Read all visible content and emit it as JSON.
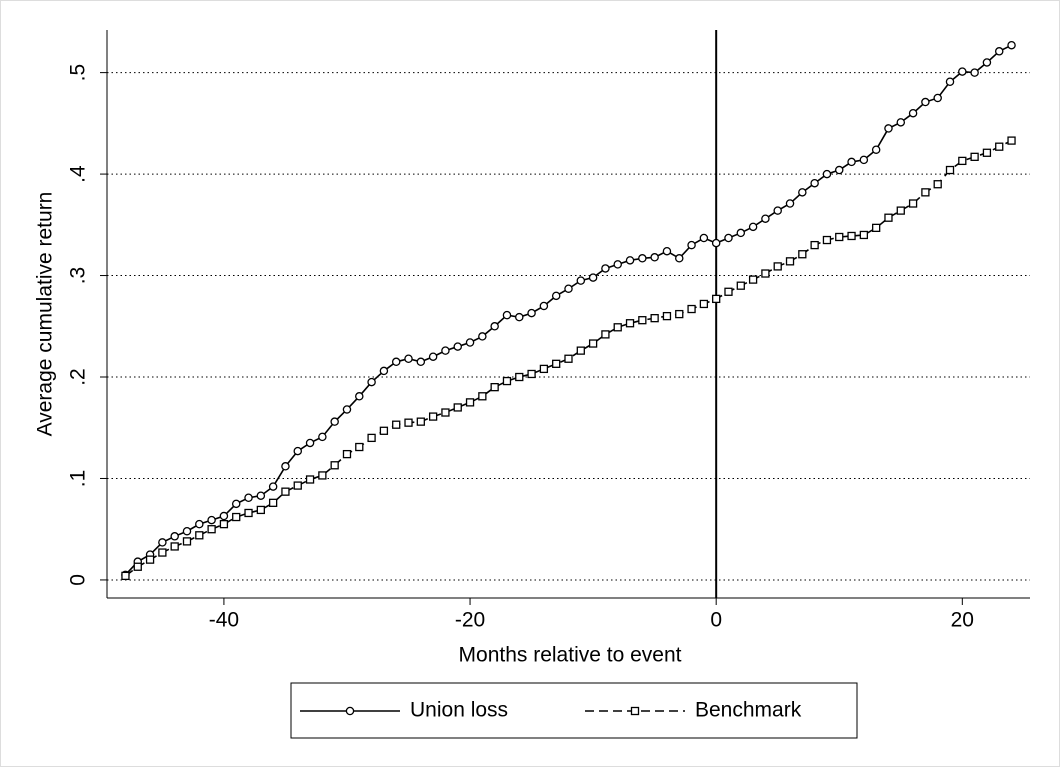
{
  "chart_data": {
    "type": "line",
    "xlabel": "Months relative to event",
    "ylabel": "Average cumulative return",
    "x": [
      -48,
      -47,
      -46,
      -45,
      -44,
      -43,
      -42,
      -41,
      -40,
      -39,
      -38,
      -37,
      -36,
      -35,
      -34,
      -33,
      -32,
      -31,
      -30,
      -29,
      -28,
      -27,
      -26,
      -25,
      -24,
      -23,
      -22,
      -21,
      -20,
      -19,
      -18,
      -17,
      -16,
      -15,
      -14,
      -13,
      -12,
      -11,
      -10,
      -9,
      -8,
      -7,
      -6,
      -5,
      -4,
      -3,
      -2,
      -1,
      0,
      1,
      2,
      3,
      4,
      5,
      6,
      7,
      8,
      9,
      10,
      11,
      12,
      13,
      14,
      15,
      16,
      17,
      18,
      19,
      20,
      21,
      22,
      23,
      24
    ],
    "series": [
      {
        "name": "Union loss",
        "color": "#000000",
        "marker": "circle",
        "line_style": "solid",
        "values": [
          0.005,
          0.018,
          0.025,
          0.037,
          0.043,
          0.048,
          0.055,
          0.059,
          0.063,
          0.075,
          0.081,
          0.083,
          0.092,
          0.112,
          0.127,
          0.135,
          0.141,
          0.156,
          0.168,
          0.181,
          0.195,
          0.206,
          0.215,
          0.218,
          0.215,
          0.22,
          0.226,
          0.23,
          0.234,
          0.24,
          0.25,
          0.261,
          0.259,
          0.263,
          0.27,
          0.28,
          0.287,
          0.295,
          0.298,
          0.307,
          0.311,
          0.315,
          0.317,
          0.318,
          0.324,
          0.317,
          0.33,
          0.337,
          0.332,
          0.337,
          0.342,
          0.348,
          0.356,
          0.364,
          0.371,
          0.382,
          0.391,
          0.4,
          0.404,
          0.412,
          0.414,
          0.424,
          0.445,
          0.451,
          0.46,
          0.471,
          0.475,
          0.491,
          0.501,
          0.5,
          0.51,
          0.521,
          0.527
        ]
      },
      {
        "name": "Benchmark",
        "color": "#000000",
        "marker": "square",
        "line_style": "dashed",
        "values": [
          0.004,
          0.013,
          0.02,
          0.027,
          0.033,
          0.038,
          0.044,
          0.05,
          0.055,
          0.062,
          0.066,
          0.069,
          0.076,
          0.087,
          0.093,
          0.099,
          0.103,
          0.113,
          0.124,
          0.131,
          0.14,
          0.147,
          0.153,
          0.155,
          0.156,
          0.161,
          0.165,
          0.17,
          0.175,
          0.181,
          0.19,
          0.196,
          0.2,
          0.203,
          0.208,
          0.213,
          0.218,
          0.226,
          0.233,
          0.242,
          0.249,
          0.253,
          0.256,
          0.258,
          0.26,
          0.262,
          0.267,
          0.272,
          0.277,
          0.284,
          0.29,
          0.296,
          0.302,
          0.309,
          0.314,
          0.321,
          0.33,
          0.335,
          0.338,
          0.339,
          0.34,
          0.347,
          0.357,
          0.364,
          0.371,
          0.382,
          0.39,
          0.404,
          0.413,
          0.417,
          0.421,
          0.427,
          0.433
        ]
      }
    ],
    "xlim": [
      -49.5,
      25.5
    ],
    "ylim": [
      -0.0178,
      0.542
    ],
    "xticks": [
      -40,
      -20,
      0,
      20
    ],
    "yticks": [
      0,
      {
        "value": 0.1,
        "label": ".1"
      },
      {
        "value": 0.2,
        "label": ".2"
      },
      {
        "value": 0.3,
        "label": ".3"
      },
      {
        "value": 0.4,
        "label": ".4"
      },
      {
        "value": 0.5,
        "label": ".5"
      }
    ],
    "grid": true,
    "xline": 0,
    "legend": "bottom"
  }
}
